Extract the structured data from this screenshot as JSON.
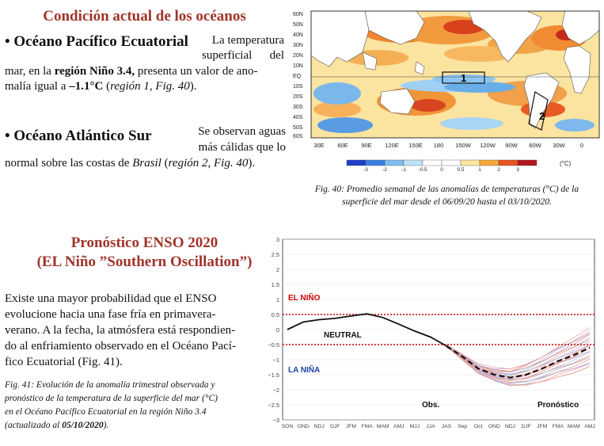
{
  "section1": {
    "title": "Condición actual de los océanos",
    "pacific": {
      "bullet": "•",
      "title": "Océano Pacífico Ecuatorial",
      "line1": "La temperatura",
      "line2": "superficial del",
      "line3_pre": "mar, en la ",
      "line3_bold": "región Niño 3.4,",
      "line3_post": " presenta un valor de ano-",
      "line4_pre": "malía igual a ",
      "line4_bold": "–1.1°C",
      "line4_post_open": " (",
      "line4_italic": "región 1, Fig. 40",
      "line4_close": ")."
    },
    "atlantic": {
      "bullet": "•",
      "title": "Océano Atlántico Sur",
      "line1": "Se observan aguas",
      "line2": "más cálidas que lo",
      "line3_pre": "normal sobre las costas de ",
      "line3_italic1": "Brasil",
      "line3_mid": " (",
      "line3_italic2": "región 2, Fig. 40",
      "line3_close": ")."
    }
  },
  "map": {
    "lat_labels": [
      "60N",
      "50N",
      "40N",
      "30N",
      "20N",
      "10N",
      "EQ",
      "10S",
      "20S",
      "30S",
      "40S",
      "50S",
      "60S"
    ],
    "lon_labels": [
      "30E",
      "60E",
      "90E",
      "120E",
      "150E",
      "180",
      "150W",
      "120W",
      "90W",
      "60W",
      "30W",
      "0"
    ],
    "region1_label": "1",
    "region2_label": "2",
    "colorbar_ticks": [
      "-3",
      "-2",
      "-1",
      "-0.5",
      "0",
      "0.5",
      "1",
      "2",
      "3"
    ],
    "colorbar_unit": "(°C)",
    "colors": [
      "#1f3fc8",
      "#3a7fe0",
      "#7fbcf0",
      "#bfe2fa",
      "#ffffff",
      "#ffffff",
      "#fce5a0",
      "#f7a83a",
      "#e8531e",
      "#b3161b"
    ]
  },
  "caption40": {
    "line1": "Fig. 40: Promedio semanal de las anomalías de temperaturas (°C) de la",
    "line2": "superficie del mar desde el 06/09/20 hasta el 03/10/2020."
  },
  "section2": {
    "title_line1": "Pronóstico ENSO 2020",
    "title_line2": "(EL Niño ”Southern Oscillation”)",
    "body": [
      "Existe una mayor probabilidad que el ENSO",
      "evolucione hacia una fase fría en primavera-",
      "verano. A la fecha, la atmósfera está respondien-",
      "do al enfriamiento observado en el Océano Pací-",
      "fico Ecuatorial (Fig. 41)."
    ],
    "caption_lines": [
      "Fig. 41: Evolución de la anomalía trimestral observada y",
      "pronóstico de la temperatura de la superficie del mar (°C)",
      "en el Océano Pacífico Ecuatorial en la región Niño 3.4"
    ],
    "caption_last_open": "(actualizado al ",
    "caption_last_bold": "05/10/2020",
    "caption_last_close": ")."
  },
  "chart_data": {
    "type": "line",
    "title": "",
    "xlabel": "",
    "ylabel": "",
    "ylim": [
      -3,
      3
    ],
    "yticks": [
      "3",
      "2.5",
      "2",
      "1.5",
      "1",
      "0.5",
      "0",
      "−0.5",
      "−1",
      "−1.5",
      "−2",
      "−2.5",
      "−3"
    ],
    "categories": [
      "SON",
      "OND",
      "NDJ",
      "DJF",
      "JFM",
      "FMA",
      "MAM",
      "AMJ",
      "MJJ",
      "JJA",
      "JAS",
      "Sep",
      "Oct",
      "OND",
      "NDJ",
      "DJF",
      "JFM",
      "FMA",
      "MAM",
      "AMJ"
    ],
    "series": [
      {
        "name": "Obs.",
        "values": [
          0.0,
          0.25,
          0.33,
          0.37,
          0.45,
          0.52,
          0.4,
          0.18,
          -0.05,
          -0.25,
          -0.55,
          null,
          null,
          null,
          null,
          null,
          null,
          null,
          null,
          null
        ]
      },
      {
        "name": "Pronóstico (media)",
        "values": [
          null,
          null,
          null,
          null,
          null,
          null,
          null,
          null,
          null,
          null,
          -0.55,
          -0.9,
          -1.3,
          -1.5,
          -1.6,
          -1.5,
          -1.3,
          -1.05,
          -0.85,
          -0.6
        ]
      }
    ],
    "thresholds": [
      {
        "name": "EL NIÑO",
        "value": 0.5,
        "color": "#cc0000"
      },
      {
        "name": "LA NIÑA",
        "value": -0.5,
        "color": "#cc0000"
      }
    ],
    "labels": {
      "el_nino": "EL NIÑO",
      "neutral": "NEUTRAL",
      "la_nina": "LA NIÑA",
      "obs": "Obs.",
      "forecast": "Pronóstico"
    }
  }
}
